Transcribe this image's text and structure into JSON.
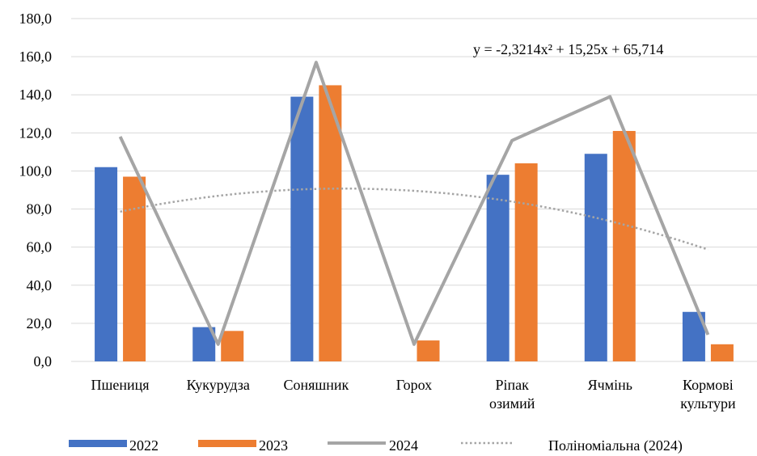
{
  "chart_data": {
    "type": "bar",
    "categories": [
      [
        "Пшениця"
      ],
      [
        "Кукурудза"
      ],
      [
        "Соняшник"
      ],
      [
        "Горох"
      ],
      [
        "Ріпак",
        "озимий"
      ],
      [
        "Ячмінь"
      ],
      [
        "Кормові",
        "культури"
      ]
    ],
    "series": [
      {
        "name": "2022",
        "kind": "bar",
        "color": "#4472C4",
        "values": [
          102,
          18,
          139,
          null,
          98,
          109,
          26
        ]
      },
      {
        "name": "2023",
        "kind": "bar",
        "color": "#ED7D31",
        "values": [
          97,
          16,
          145,
          11,
          104,
          121,
          9
        ]
      },
      {
        "name": "2024",
        "kind": "line",
        "color": "#A5A5A5",
        "values": [
          118,
          9,
          157,
          9,
          116,
          139,
          14
        ]
      }
    ],
    "trendline": {
      "name": "Поліноміальна (2024)",
      "color": "#A5A5A5",
      "style": "dotted",
      "coefficients": [
        -2.3214,
        15.25,
        65.714
      ],
      "equation": "y = -2,3214x² + 15,25x + 65,714"
    },
    "yticks": [
      "0,0",
      "20,0",
      "40,0",
      "60,0",
      "80,0",
      "100,0",
      "120,0",
      "140,0",
      "160,0",
      "180,0"
    ],
    "ylim": [
      0,
      180
    ],
    "grid": true,
    "legend_position": "bottom"
  }
}
